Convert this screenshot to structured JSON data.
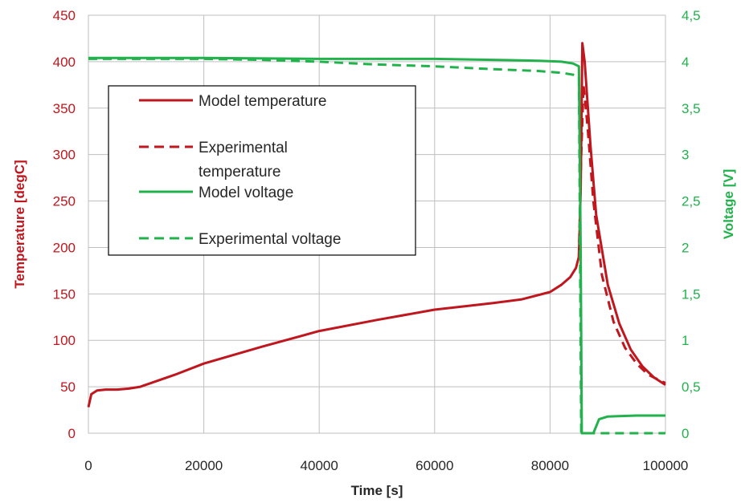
{
  "chart_data": {
    "type": "line",
    "title": "",
    "xlabel": "Time [s]",
    "ylabel_left": "Temperature [degC]",
    "ylabel_right": "Voltage [V]",
    "xlim": [
      0,
      100000
    ],
    "ylim_left": [
      0,
      450
    ],
    "ylim_right": [
      0,
      4.5
    ],
    "x_ticks": [
      "0",
      "20000",
      "40000",
      "60000",
      "80000",
      "100000"
    ],
    "y_left_ticks": [
      "0",
      "50",
      "100",
      "150",
      "200",
      "250",
      "300",
      "350",
      "400",
      "450"
    ],
    "y_right_ticks": [
      "0",
      "0,5",
      "1",
      "1,5",
      "2",
      "2,5",
      "3",
      "3,5",
      "4",
      "4,5"
    ],
    "grid": true,
    "legend_position": "center-left",
    "legend": {
      "model_temperature": "Model temperature",
      "experimental_temperature_line1": "Experimental",
      "experimental_temperature_line2": "temperature",
      "model_voltage": "Model voltage",
      "experimental_voltage": "Experimental voltage"
    },
    "colors": {
      "temperature": "#c0161e",
      "voltage": "#22b24c",
      "grid": "#bfbfbf",
      "axis_text": "#262626"
    },
    "series": [
      {
        "name": "Model temperature",
        "axis": "left",
        "style": "solid",
        "x": [
          0,
          500,
          1500,
          3000,
          5000,
          7000,
          9000,
          15000,
          20000,
          30000,
          40000,
          50000,
          60000,
          70000,
          75000,
          80000,
          82000,
          83500,
          84500,
          85000,
          85300,
          85600,
          86000,
          87000,
          88000,
          90000,
          92000,
          94000,
          96000,
          98000,
          100000
        ],
        "y": [
          28,
          42,
          46,
          47,
          47,
          48,
          50,
          63,
          75,
          93,
          110,
          122,
          133,
          140,
          144,
          152,
          160,
          168,
          178,
          190,
          260,
          420,
          400,
          310,
          235,
          160,
          118,
          90,
          72,
          60,
          52
        ]
      },
      {
        "name": "Experimental temperature",
        "axis": "left",
        "style": "dashed",
        "x": [
          85000,
          85400,
          85800,
          86500,
          87500,
          89000,
          91000,
          93000,
          95000,
          97000,
          99000,
          100000
        ],
        "y": [
          190,
          300,
          375,
          330,
          250,
          170,
          120,
          92,
          75,
          63,
          57,
          54
        ]
      },
      {
        "name": "Model voltage",
        "axis": "right",
        "style": "solid",
        "x": [
          0,
          20000,
          40000,
          60000,
          70000,
          78000,
          82000,
          84000,
          85000,
          85300,
          85500,
          86500,
          87500,
          88500,
          90000,
          95000,
          100000
        ],
        "y": [
          4.04,
          4.04,
          4.03,
          4.03,
          4.02,
          4.01,
          4.0,
          3.98,
          3.95,
          2.0,
          0.0,
          0.0,
          0.0,
          0.15,
          0.18,
          0.19,
          0.19
        ]
      },
      {
        "name": "Experimental voltage",
        "axis": "right",
        "style": "dashed",
        "x": [
          0,
          20000,
          30000,
          40000,
          50000,
          60000,
          70000,
          78000,
          82000,
          84000,
          85000,
          85200,
          85400,
          88000,
          100000
        ],
        "y": [
          4.03,
          4.03,
          4.02,
          4.0,
          3.97,
          3.95,
          3.92,
          3.9,
          3.88,
          3.86,
          3.84,
          2.0,
          0.0,
          0.0,
          0.0
        ]
      }
    ]
  }
}
